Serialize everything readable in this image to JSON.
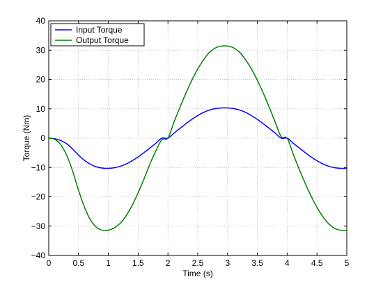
{
  "chart_data": {
    "type": "line",
    "title": "",
    "xlabel": "Time (s)",
    "ylabel": "Torque (Nm)",
    "xlim": [
      0,
      5
    ],
    "ylim": [
      -40,
      40
    ],
    "xticks": [
      0,
      0.5,
      1,
      1.5,
      2,
      2.5,
      3,
      3.5,
      4,
      4.5,
      5
    ],
    "xtick_labels": [
      "0",
      "0.5",
      "1",
      "1.5",
      "2",
      "2.5",
      "3",
      "3.5",
      "4",
      "4.5",
      "5"
    ],
    "yticks": [
      -40,
      -30,
      -20,
      -10,
      0,
      10,
      20,
      30,
      40
    ],
    "ytick_labels": [
      "−40",
      "−30",
      "−20",
      "−10",
      "0",
      "10",
      "20",
      "30",
      "40"
    ],
    "grid": true,
    "legend_position": "top-left",
    "x": [
      0,
      0.1,
      0.2,
      0.3,
      0.4,
      0.5,
      0.6,
      0.7,
      0.8,
      0.9,
      1.0,
      1.1,
      1.2,
      1.3,
      1.4,
      1.5,
      1.6,
      1.7,
      1.8,
      1.9,
      2.0,
      2.1,
      2.2,
      2.3,
      2.4,
      2.5,
      2.6,
      2.7,
      2.8,
      2.9,
      3.0,
      3.1,
      3.2,
      3.3,
      3.4,
      3.5,
      3.6,
      3.7,
      3.8,
      3.9,
      4.0,
      4.1,
      4.2,
      4.3,
      4.4,
      4.5,
      4.6,
      4.7,
      4.8,
      4.9,
      5.0
    ],
    "series": [
      {
        "name": "Input Torque",
        "color": "#0000ff",
        "values": [
          0,
          -0.2,
          -0.8,
          -1.9,
          -3.7,
          -5.8,
          -7.6,
          -8.9,
          -9.8,
          -10.2,
          -10.3,
          -10.1,
          -9.6,
          -8.8,
          -7.7,
          -6.4,
          -4.9,
          -3.3,
          -1.7,
          0.0,
          0.0,
          1.7,
          3.3,
          4.9,
          6.4,
          7.7,
          8.8,
          9.6,
          10.1,
          10.3,
          10.3,
          10.1,
          9.6,
          8.8,
          7.7,
          6.4,
          4.9,
          3.3,
          1.7,
          0.0,
          0.0,
          -1.7,
          -3.3,
          -4.9,
          -6.4,
          -7.7,
          -8.8,
          -9.6,
          -10.1,
          -10.3,
          -10.3
        ]
      },
      {
        "name": "Output Torque",
        "color": "#007f00",
        "values": [
          0,
          -0.4,
          -2.2,
          -5.8,
          -11.2,
          -17.8,
          -23.6,
          -27.9,
          -30.4,
          -31.4,
          -31.4,
          -30.6,
          -29.0,
          -26.4,
          -22.9,
          -18.6,
          -13.8,
          -8.7,
          -4.2,
          -0.5,
          0.0,
          5.4,
          10.5,
          15.3,
          19.7,
          23.6,
          26.8,
          29.3,
          30.8,
          31.4,
          31.4,
          30.8,
          29.3,
          26.8,
          23.6,
          19.7,
          15.3,
          10.5,
          5.4,
          0.5,
          0.0,
          -5.4,
          -10.5,
          -15.3,
          -19.7,
          -23.6,
          -26.8,
          -29.3,
          -30.8,
          -31.4,
          -31.4
        ]
      }
    ]
  }
}
